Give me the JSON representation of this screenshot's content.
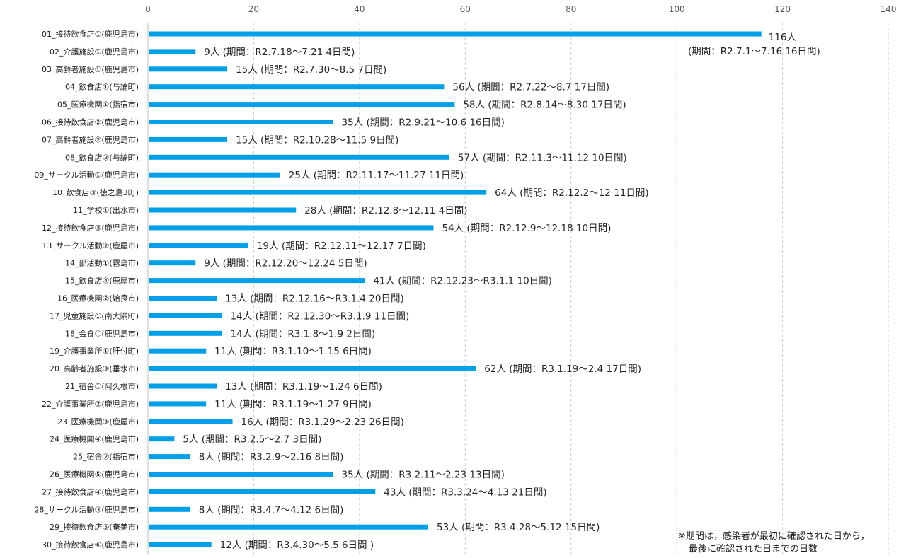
{
  "chart_data": {
    "type": "bar",
    "orientation": "horizontal",
    "xlim": [
      0,
      140
    ],
    "xticks": [
      0,
      20,
      40,
      60,
      80,
      100,
      120,
      140
    ],
    "grid": true,
    "bar_color": "#00A0E9",
    "categories": [
      "01_接待飲食店①(鹿児島市)",
      "02_介護施設①(鹿児島市)",
      "03_高齢者施設①(鹿児島市)",
      "04_飲食店①(与論町)",
      "05_医療機関①(指宿市)",
      "06_接待飲食店②(鹿児島市)",
      "07_高齢者施設②(鹿児島市)",
      "08_飲食店②(与論町)",
      "09_サークル活動①(鹿児島市)",
      "10_飲食店③(徳之島3町)",
      "11_学校①(出水市)",
      "12_接待飲食店③(鹿児島市)",
      "13_サークル活動②(鹿屋市)",
      "14_部活動①(霧島市)",
      "15_飲食店④(鹿屋市)",
      "16_医療機関②(姶良市)",
      "17_児童施設①(南大隅町)",
      "18_会食①(鹿児島市)",
      "19_介護事業所①(肝付町)",
      "20_高齢者施設③(垂水市)",
      "21_宿舎①(阿久根市)",
      "22_介護事業所②(鹿児島市)",
      "23_医療機関③(鹿屋市)",
      "24_医療機関④(鹿児島市)",
      "25_宿舎②(指宿市)",
      "26_医療機関⑤(鹿児島市)",
      "27_接待飲食店④(鹿児島市)",
      "28_サークル活動③(鹿児島市)",
      "29_接待飲食店⑤(奄美市)",
      "30_接待飲食店⑥(鹿児島市)"
    ],
    "values": [
      116,
      9,
      15,
      56,
      58,
      35,
      15,
      57,
      25,
      64,
      28,
      54,
      19,
      9,
      41,
      13,
      14,
      14,
      11,
      62,
      13,
      11,
      16,
      5,
      8,
      35,
      43,
      8,
      53,
      12
    ],
    "value_labels": [
      "116人",
      "9人",
      "15人",
      "56人",
      "58人",
      "35人",
      "15人",
      "57人",
      "25人",
      "64人",
      "28人",
      "54人",
      "19人",
      "9人",
      "41人",
      "13人",
      "14人",
      "14人",
      "11人",
      "62人",
      "13人",
      "11人",
      "16人",
      "5人",
      "8人",
      "35人",
      "43人",
      "8人",
      "53人",
      "12人"
    ],
    "period_labels": [
      "(期間：R2.7.1～7.16  16日間)",
      "(期間：R2.7.18～7.21  4日間)",
      "(期間：R2.7.30～8.5  7日間)",
      "(期間：R2.7.22～8.7  17日間)",
      "(期間：R2.8.14～8.30  17日間)",
      "(期間：R2.9.21～10.6  16日間)",
      "(期間：R2.10.28～11.5  9日間)",
      "(期間：R2.11.3～11.12  10日間)",
      "(期間：R2.11.17～11.27  11日間)",
      "(期間：R2.12.2～12  11日間)",
      "(期間：R2.12.8～12.11  4日間)",
      "(期間：R2.12.9～12.18  10日間)",
      "(期間：R2.12.11～12.17  7日間)",
      "(期間：R2.12.20～12.24  5日間)",
      "(期間：R2.12.23～R3.1.1  10日間)",
      "(期間：R2.12.16～R3.1.4  20日間)",
      "(期間：R2.12.30～R3.1.9  11日間)",
      "(期間：R3.1.8～1.9  2日間)",
      "(期間：R3.1.10～1.15  6日間)",
      "(期間：R3.1.19～2.4  17日間)",
      "(期間：R3.1.19～1.24  6日間)",
      "(期間：R3.1.19～1.27  9日間)",
      "(期間：R3.1.29～2.23  26日間)",
      "(期間：R3.2.5～2.7  3日間)",
      "(期間：R3.2.9～2.16  8日間)",
      "(期間：R3.2.11～2.23  13日間)",
      "(期間：R3.3.24～4.13  21日間)",
      "(期間：R3.4.7～4.12  6日間)",
      "(期間：R3.4.28～5.12  15日間)",
      "(期間：R3.4.30～5.5  6日間 )"
    ],
    "title": "",
    "xlabel": "",
    "ylabel": ""
  },
  "note": {
    "line1": "※期間は，感染者が最初に確認された日から，",
    "line2": "最後に確認された日までの日数"
  }
}
